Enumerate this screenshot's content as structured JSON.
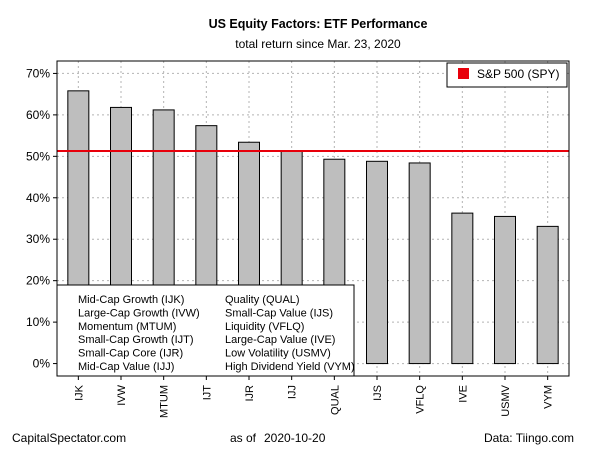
{
  "chart_data": {
    "type": "bar",
    "title": "US Equity Factors: ETF Performance",
    "subtitle": "total return since Mar. 23, 2020",
    "categories": [
      "IJK",
      "IVW",
      "MTUM",
      "IJT",
      "IJR",
      "IJJ",
      "QUAL",
      "IJS",
      "VFLQ",
      "IVE",
      "USMV",
      "VYM"
    ],
    "values": [
      65.8,
      61.8,
      61.2,
      57.4,
      53.4,
      51.4,
      49.3,
      48.8,
      48.4,
      36.3,
      35.5,
      33.1
    ],
    "ylim": [
      -3,
      73
    ],
    "yticks": [
      0,
      10,
      20,
      30,
      40,
      50,
      60,
      70
    ],
    "ytick_labels": [
      "0%",
      "10%",
      "20%",
      "30%",
      "40%",
      "50%",
      "60%",
      "70%"
    ],
    "grid": true,
    "bar_color": "#bebebe",
    "reference_line": {
      "label": "S&P 500 (SPY)",
      "value": 51.3,
      "color": "#e8000b"
    },
    "legend_position": "top-right",
    "key_box": {
      "position": "bottom-left",
      "column_left": [
        "Mid-Cap Growth (IJK)",
        "Large-Cap Growth (IVW)",
        "Momentum (MTUM)",
        "Small-Cap Growth (IJT)",
        "Small-Cap Core (IJR)",
        "Mid-Cap Value (IJJ)"
      ],
      "column_right": [
        "Quality (QUAL)",
        "Small-Cap Value (IJS)",
        "Liquidity (VFLQ)",
        "Large-Cap Value (IVE)",
        "Low Volatility (USMV)",
        "High Dividend Yield (VYM)"
      ]
    }
  },
  "footer": {
    "left": "CapitalSpectator.com",
    "center_prefix": "as of",
    "center_date": "2020-10-20",
    "right": "Data: Tiingo.com"
  }
}
